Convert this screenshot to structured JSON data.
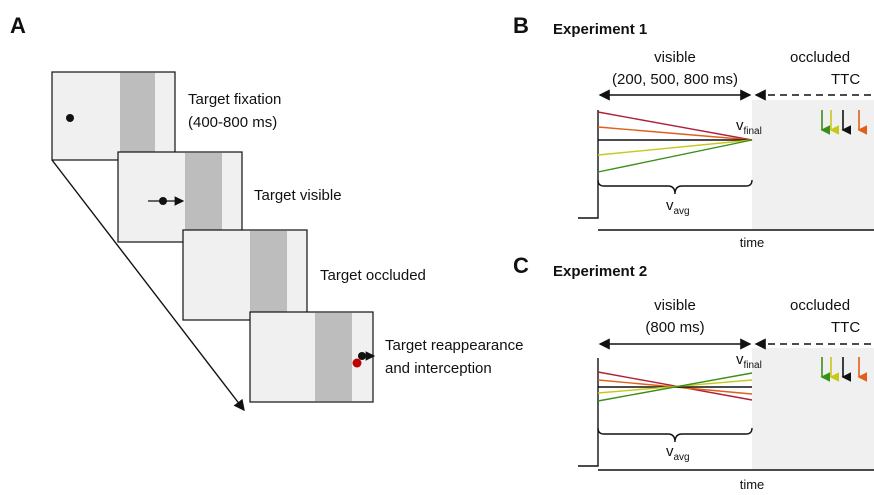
{
  "panels": [
    {
      "label": "A",
      "steps": [
        {
          "lines": [
            "Target fixation",
            "(400-800 ms)"
          ]
        },
        {
          "lines": [
            "Target visible"
          ]
        },
        {
          "lines": [
            "Target occluded"
          ]
        },
        {
          "lines": [
            "Target reappearance",
            "and interception"
          ]
        }
      ]
    },
    {
      "label": "B",
      "title": "Experiment 1",
      "visible": "visible",
      "visible_duration": "(200, 500, 800 ms)",
      "occluded": "occluded",
      "ttc": "TTC",
      "v_final": {
        "v": "v",
        "sub": "final"
      },
      "v_avg": {
        "v": "v",
        "sub": "avg"
      },
      "x_label": "time"
    },
    {
      "label": "C",
      "title": "Experiment 2",
      "visible": "visible",
      "visible_duration": "(800 ms)",
      "occluded": "occluded",
      "ttc": "TTC",
      "v_final": {
        "v": "v",
        "sub": "final"
      },
      "v_avg": {
        "v": "v",
        "sub": "avg"
      },
      "x_label": "time"
    }
  ]
}
